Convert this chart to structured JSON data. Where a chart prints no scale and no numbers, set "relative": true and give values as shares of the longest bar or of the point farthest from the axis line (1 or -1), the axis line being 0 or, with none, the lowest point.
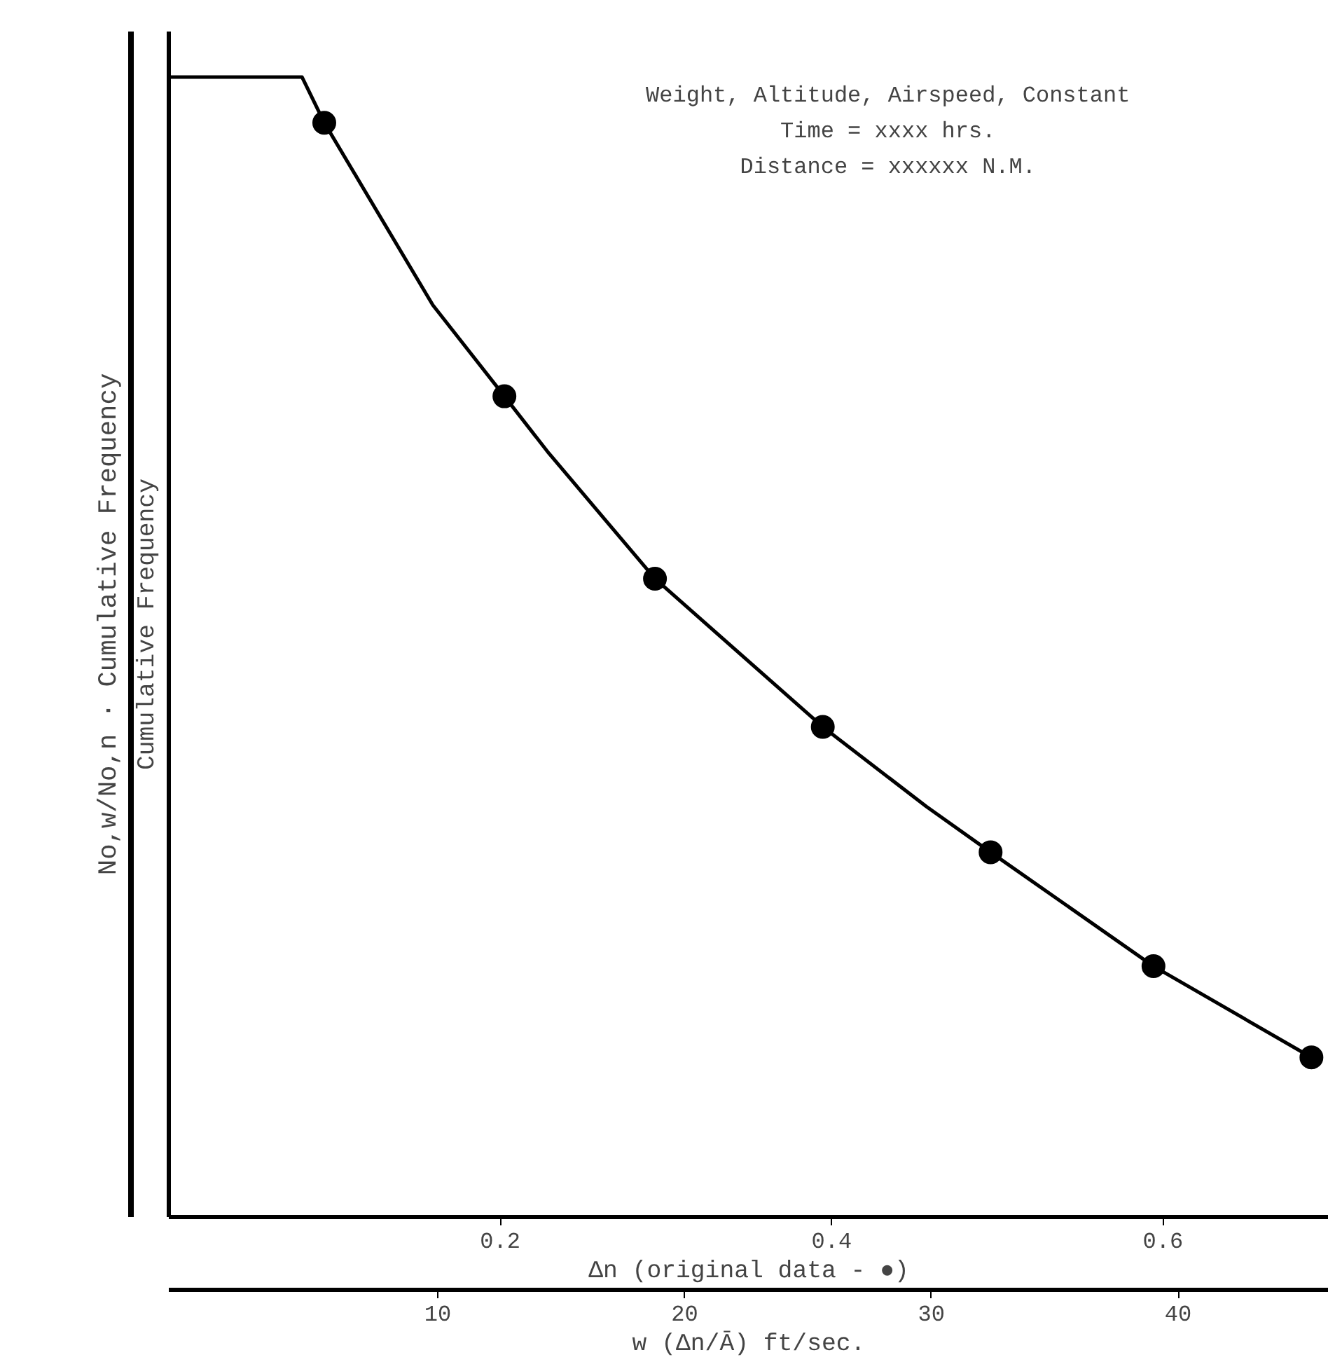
{
  "chart_data": {
    "type": "line",
    "relative": true,
    "xlabel": "w (Δn/Ā) ft/sec.",
    "ylabel": "Cumulative Frequency",
    "x2label": "Δn (original data - ●)",
    "xlim": [
      -0.9,
      46.1
    ],
    "xticks": [
      10,
      20,
      30,
      40
    ],
    "x2lim": [
      0,
      0.7
    ],
    "x2ticks": [
      0.2,
      0.4,
      0.6
    ],
    "grid": false,
    "annotations": [
      "No,w/No,n · Cumulative Frequency",
      "Weight, Altitude, Airspeed, Constant",
      "Time = xxxx hrs.",
      "Distance = xxxxxx N.M."
    ],
    "series": [
      {
        "color": "#000000",
        "marker": "none",
        "x": [
          -0.9,
          4.5,
          5.4,
          9.8,
          12.7,
          14.5,
          18.8,
          25.6,
          29.8,
          32.4,
          39.0,
          45.4
        ],
        "values": [
          1,
          1,
          0.96,
          0.8,
          0.72,
          0.67,
          0.56,
          0.43,
          0.36,
          0.32,
          0.22,
          0.14
        ]
      },
      {
        "type": "scatter",
        "color": "#000000",
        "marker": "circle",
        "x": [
          5.4,
          12.7,
          18.8,
          25.6,
          32.4,
          39.0,
          45.4
        ],
        "values": [
          0.96,
          0.72,
          0.56,
          0.43,
          0.32,
          0.22,
          0.14
        ]
      }
    ]
  }
}
